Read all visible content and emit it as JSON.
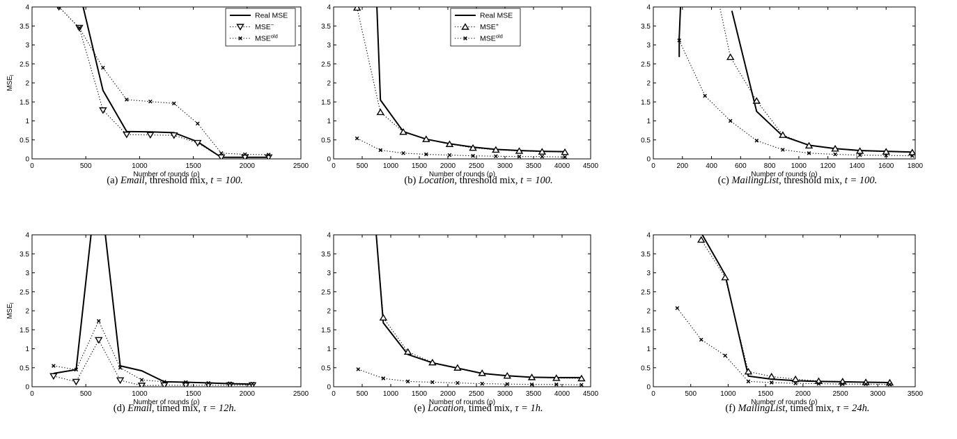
{
  "chart_data": [
    {
      "type": "line",
      "caption": {
        "label": "(a)",
        "dataset": "Email",
        "rest": ", threshold mix, ",
        "param": "t = 100."
      },
      "xlabel": "Number of rounds (ρ)",
      "ylabel": "MSE",
      "xlim": [
        0,
        2500
      ],
      "ylim": [
        0,
        4
      ],
      "xticks": [
        "0",
        "500",
        "1000",
        "1500",
        "2000",
        "2500"
      ],
      "yticks": [
        "0",
        "0.5",
        "1",
        "1.5",
        "2",
        "2.5",
        "3",
        "3.5",
        "4"
      ],
      "legend": {
        "position": "top-right",
        "entries": [
          "Real MSE",
          "MSE",
          "MSE"
        ],
        "sups": [
          "",
          "−",
          "old"
        ]
      },
      "series": [
        {
          "name": "Real MSE",
          "style": "solid",
          "marker": "none",
          "x": [
            450,
            660,
            880,
            1100,
            1320,
            1540,
            1760,
            1980,
            2200
          ],
          "y": [
            4.3,
            1.8,
            0.72,
            0.71,
            0.69,
            0.45,
            0.04,
            0.04,
            0.04
          ]
        },
        {
          "name": "MSE",
          "style": "dotted",
          "marker": "triangle-down",
          "x": [
            250,
            440,
            660,
            880,
            1100,
            1320,
            1540,
            1760,
            1980,
            2200
          ],
          "y": [
            4.0,
            3.45,
            1.28,
            0.64,
            0.63,
            0.62,
            0.42,
            0.04,
            0.04,
            0.04
          ]
        },
        {
          "name": "MSE",
          "style": "dotted",
          "marker": "x",
          "x": [
            250,
            440,
            660,
            880,
            1100,
            1320,
            1540,
            1760,
            1980,
            2200
          ],
          "y": [
            4.0,
            3.45,
            2.4,
            1.56,
            1.51,
            1.46,
            0.93,
            0.15,
            0.12,
            0.11
          ]
        }
      ]
    },
    {
      "type": "line",
      "caption": {
        "label": "(b)",
        "dataset": "Location",
        "rest": ", threshold mix, ",
        "param": "t = 100."
      },
      "xlabel": "Number of rounds (ρ)",
      "ylabel": "",
      "xlim": [
        0,
        4500
      ],
      "ylim": [
        0,
        4
      ],
      "xticks": [
        "0",
        "500",
        "1000",
        "1500",
        "2000",
        "2500",
        "3000",
        "3500",
        "4000",
        "4500"
      ],
      "yticks": [
        "0",
        "0.5",
        "1",
        "1.5",
        "2",
        "2.5",
        "3",
        "3.5",
        "4"
      ],
      "legend": {
        "position": "top-center",
        "entries": [
          "Real MSE",
          "MSE",
          "MSE"
        ],
        "sups": [
          "",
          "+",
          "old"
        ]
      },
      "series": [
        {
          "name": "Real MSE",
          "style": "solid",
          "marker": "none",
          "x": [
            750,
            820,
            1220,
            1620,
            2030,
            2440,
            2840,
            3250,
            3650,
            4050
          ],
          "y": [
            4.3,
            1.55,
            0.72,
            0.52,
            0.4,
            0.31,
            0.25,
            0.22,
            0.2,
            0.19
          ]
        },
        {
          "name": "MSE",
          "style": "dotted",
          "marker": "triangle-up",
          "x": [
            410,
            820,
            1220,
            1620,
            2030,
            2440,
            2840,
            3250,
            3650,
            4050
          ],
          "y": [
            3.98,
            1.23,
            0.71,
            0.52,
            0.39,
            0.29,
            0.24,
            0.21,
            0.19,
            0.18
          ]
        },
        {
          "name": "MSE",
          "style": "dotted",
          "marker": "x",
          "x": [
            410,
            820,
            1220,
            1620,
            2030,
            2440,
            2840,
            3250,
            3650,
            4050
          ],
          "y": [
            0.54,
            0.23,
            0.15,
            0.12,
            0.1,
            0.08,
            0.07,
            0.06,
            0.06,
            0.05
          ]
        }
      ]
    },
    {
      "type": "line",
      "caption": {
        "label": "(c)",
        "dataset": "MailingList",
        "rest": ", threshold mix, ",
        "param": "t = 100."
      },
      "xlabel": "Number of rounds (ρ)",
      "ylabel": "",
      "xlim": [
        0,
        1800
      ],
      "ylim": [
        0,
        4
      ],
      "xticks": [
        "0",
        "200",
        "400",
        "600",
        "800",
        "1000",
        "1200",
        "1400",
        "1600",
        "1800"
      ],
      "yticks": [
        "0",
        "0.5",
        "1",
        "1.5",
        "2",
        "2.5",
        "3",
        "3.5",
        "4"
      ],
      "legend": null,
      "series": [
        {
          "name": "Real MSE",
          "style": "solid",
          "marker": "none",
          "x": [
            178,
            178,
            190
          ],
          "y": [
            2.68,
            3.2,
            4.3
          ]
        },
        {
          "name": "Real MSE",
          "style": "solid",
          "marker": "none",
          "x": [
            540,
            710,
            890,
            1070,
            1250,
            1420,
            1600,
            1780
          ],
          "y": [
            3.9,
            1.25,
            0.6,
            0.36,
            0.27,
            0.22,
            0.2,
            0.18
          ]
        },
        {
          "name": "MSE",
          "style": "dotted",
          "marker": "triangle-up",
          "x": [
            440,
            530,
            710,
            890,
            1070,
            1250,
            1420,
            1600,
            1780
          ],
          "y": [
            4.3,
            2.68,
            1.53,
            0.63,
            0.35,
            0.27,
            0.21,
            0.19,
            0.17
          ]
        },
        {
          "name": "MSE",
          "style": "dotted",
          "marker": "x",
          "x": [
            178,
            355,
            530,
            710,
            890,
            1070,
            1250,
            1420,
            1600,
            1780
          ],
          "y": [
            3.12,
            1.66,
            1.0,
            0.48,
            0.24,
            0.15,
            0.12,
            0.1,
            0.09,
            0.08
          ]
        }
      ]
    },
    {
      "type": "line",
      "caption": {
        "label": "(d)",
        "dataset": "Email",
        "rest": ", timed mix, ",
        "param": "τ = 12h."
      },
      "xlabel": "Number of rounds (ρ)",
      "ylabel": "MSE",
      "xlim": [
        0,
        2500
      ],
      "ylim": [
        0,
        4
      ],
      "xticks": [
        "0",
        "500",
        "1000",
        "1500",
        "2000",
        "2500"
      ],
      "yticks": [
        "0",
        "0.5",
        "1",
        "1.5",
        "2",
        "2.5",
        "3",
        "3.5",
        "4"
      ],
      "legend": null,
      "series": [
        {
          "name": "Real MSE",
          "style": "solid",
          "marker": "none",
          "x": [
            200,
            410,
            560,
            670,
            820,
            1020,
            1230,
            1430,
            1640,
            1840,
            2050
          ],
          "y": [
            0.35,
            0.45,
            4.3,
            4.3,
            0.55,
            0.42,
            0.13,
            0.12,
            0.1,
            0.08,
            0.07
          ]
        },
        {
          "name": "MSE",
          "style": "dotted",
          "marker": "triangle-down",
          "x": [
            200,
            410,
            620,
            820,
            1020,
            1230,
            1430,
            1640,
            1840,
            2050
          ],
          "y": [
            0.28,
            0.13,
            1.23,
            0.17,
            0.03,
            0.04,
            0.04,
            0.04,
            0.04,
            0.04
          ]
        },
        {
          "name": "MSE",
          "style": "dotted",
          "marker": "x",
          "x": [
            200,
            410,
            620,
            820,
            1020,
            1230,
            1430,
            1640,
            1840,
            2050
          ],
          "y": [
            0.55,
            0.45,
            1.73,
            0.5,
            0.18,
            0.13,
            0.12,
            0.1,
            0.09,
            0.08
          ]
        }
      ]
    },
    {
      "type": "line",
      "caption": {
        "label": "(e)",
        "dataset": "Location",
        "rest": ", timed mix, ",
        "param": "τ = 1h."
      },
      "xlabel": "Number of rounds (ρ)",
      "ylabel": "",
      "xlim": [
        0,
        4500
      ],
      "ylim": [
        0,
        4
      ],
      "xticks": [
        "0",
        "500",
        "1000",
        "1500",
        "2000",
        "2500",
        "3000",
        "3500",
        "4000",
        "4500"
      ],
      "yticks": [
        "0",
        "0.5",
        "1",
        "1.5",
        "2",
        "2.5",
        "3",
        "3.5",
        "4"
      ],
      "legend": null,
      "series": [
        {
          "name": "Real MSE",
          "style": "solid",
          "marker": "none",
          "x": [
            730,
            870,
            1300,
            1730,
            2170,
            2600,
            3040,
            3470,
            3900,
            4340
          ],
          "y": [
            4.3,
            1.68,
            0.85,
            0.63,
            0.49,
            0.35,
            0.29,
            0.25,
            0.24,
            0.24
          ]
        },
        {
          "name": "MSE",
          "style": "dotted",
          "marker": "triangle-up",
          "x": [
            730,
            870,
            1300,
            1730,
            2170,
            2600,
            3040,
            3470,
            3900,
            4340
          ],
          "y": [
            4.3,
            1.82,
            0.92,
            0.64,
            0.5,
            0.36,
            0.29,
            0.25,
            0.23,
            0.22
          ]
        },
        {
          "name": "MSE",
          "style": "dotted",
          "marker": "x",
          "x": [
            430,
            870,
            1300,
            1730,
            2170,
            2600,
            3040,
            3470,
            3900,
            4340
          ],
          "y": [
            0.46,
            0.22,
            0.14,
            0.12,
            0.1,
            0.08,
            0.07,
            0.06,
            0.06,
            0.05
          ]
        }
      ]
    },
    {
      "type": "line",
      "caption": {
        "label": "(f)",
        "dataset": "MailingList",
        "rest": ", timed mix, ",
        "param": "τ = 24h."
      },
      "xlabel": "Number of rounds (ρ)",
      "ylabel": "",
      "xlim": [
        0,
        3500
      ],
      "ylim": [
        0,
        4
      ],
      "xticks": [
        "0",
        "500",
        "1000",
        "1500",
        "2000",
        "2500",
        "3000",
        "3500"
      ],
      "yticks": [
        "0",
        "0.5",
        "1",
        "1.5",
        "2",
        "2.5",
        "3",
        "3.5",
        "4"
      ],
      "legend": null,
      "series": [
        {
          "name": "Real MSE",
          "style": "solid",
          "marker": "none",
          "x": [
            640,
            960,
            1270,
            1580,
            1900,
            2210,
            2530,
            2840,
            3160
          ],
          "y": [
            4.05,
            2.95,
            0.28,
            0.2,
            0.16,
            0.14,
            0.13,
            0.12,
            0.11
          ]
        },
        {
          "name": "MSE",
          "style": "dotted",
          "marker": "triangle-up",
          "x": [
            640,
            960,
            1270,
            1580,
            1900,
            2210,
            2530,
            2840,
            3160
          ],
          "y": [
            3.87,
            2.88,
            0.4,
            0.27,
            0.2,
            0.15,
            0.14,
            0.12,
            0.11
          ]
        },
        {
          "name": "MSE",
          "style": "dotted",
          "marker": "x",
          "x": [
            320,
            640,
            960,
            1270,
            1580,
            1900,
            2210,
            2530,
            2840,
            3160
          ],
          "y": [
            2.07,
            1.24,
            0.82,
            0.14,
            0.11,
            0.09,
            0.08,
            0.07,
            0.07,
            0.06
          ]
        }
      ]
    }
  ]
}
